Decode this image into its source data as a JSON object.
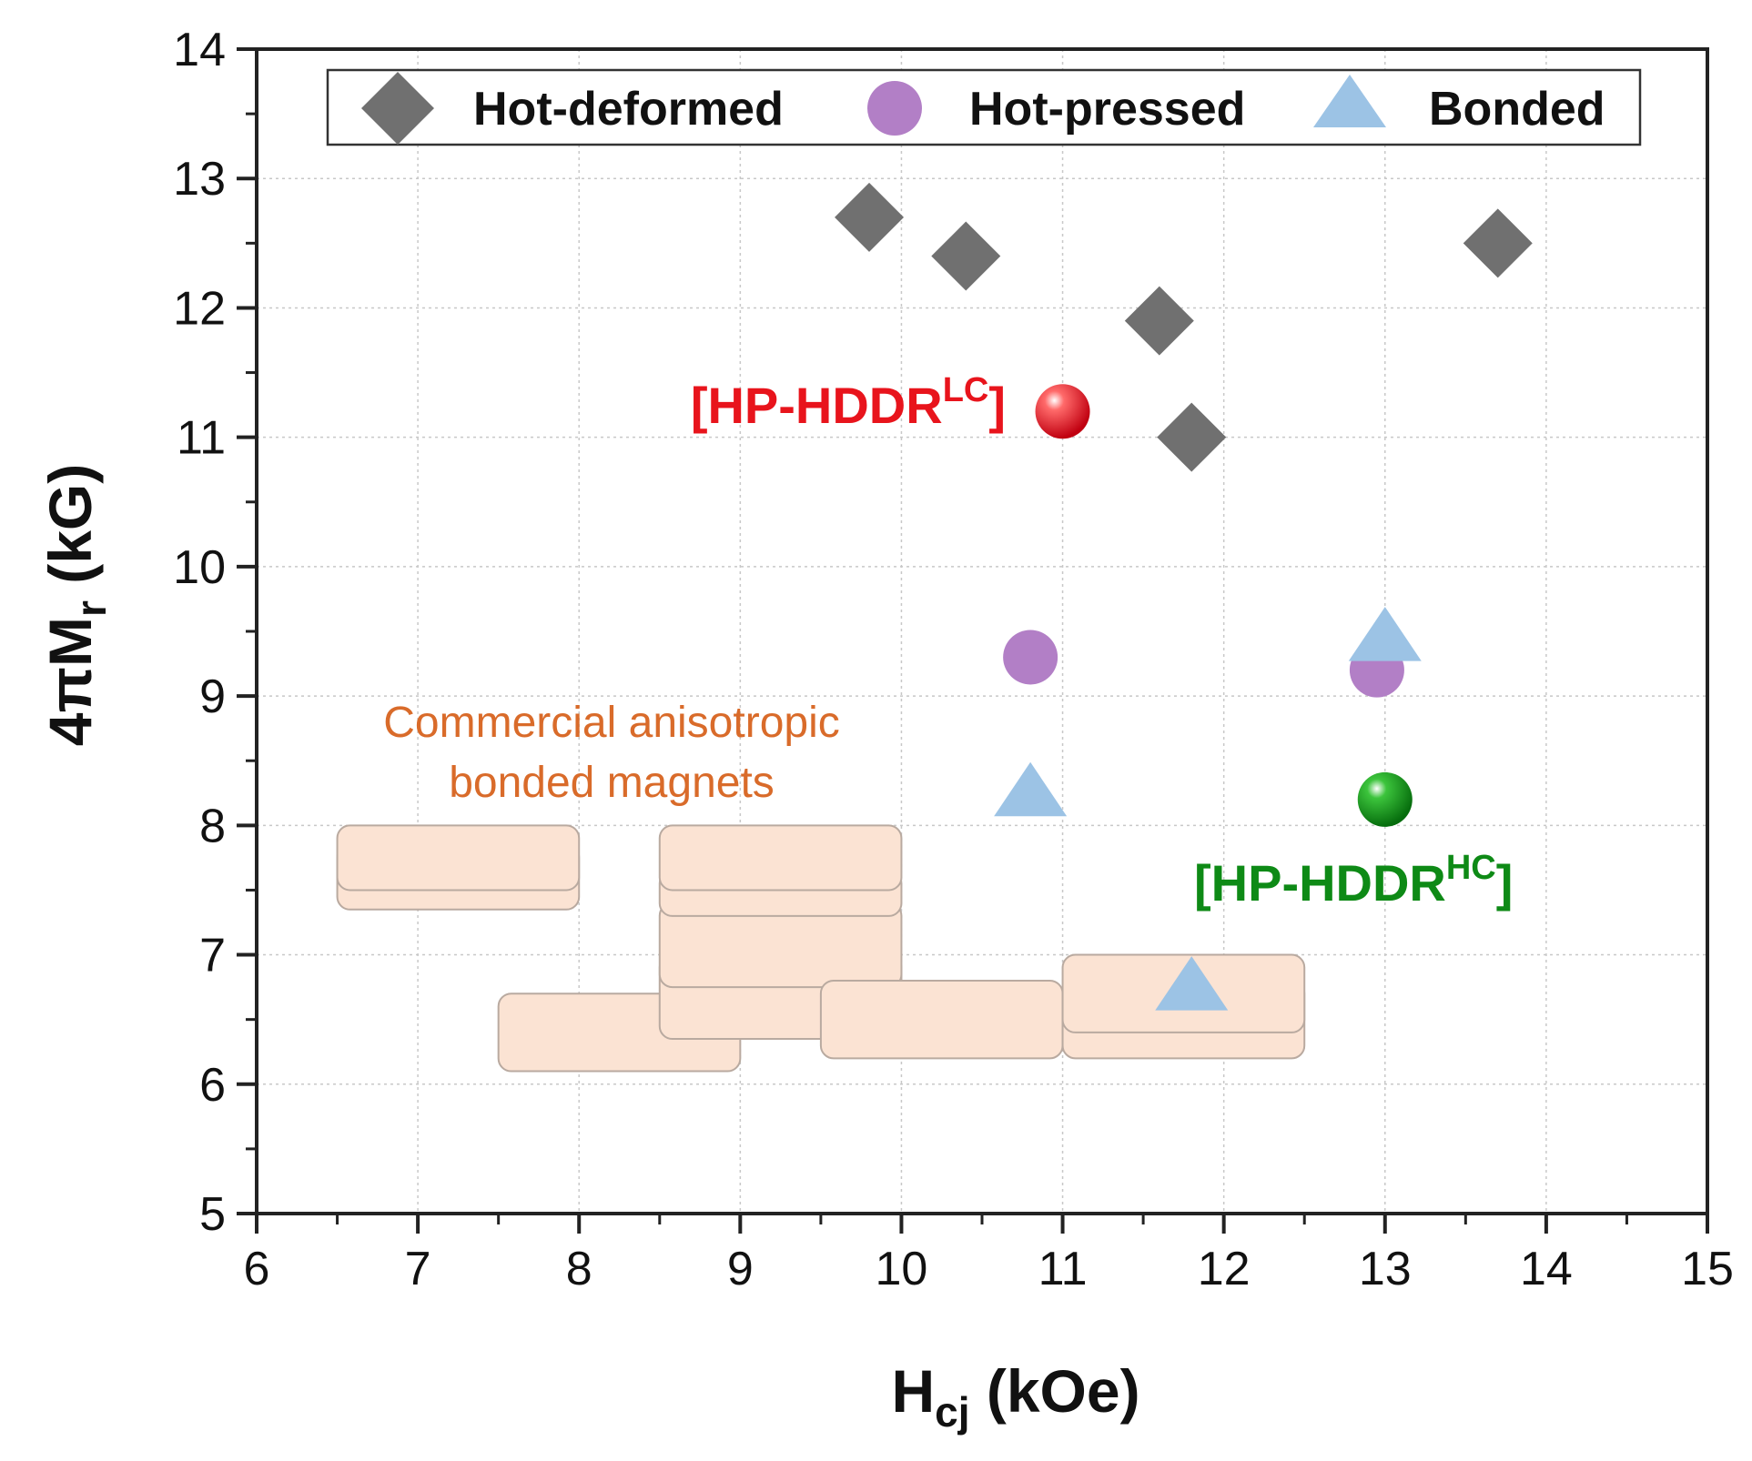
{
  "chart_data": {
    "type": "scatter",
    "title": "",
    "xlabel": {
      "main": "H",
      "sub": "cj",
      "unit": " (kOe)"
    },
    "ylabel": {
      "main": "4πM",
      "sub": "r",
      "unit": " (kG)"
    },
    "xlim": [
      6,
      15
    ],
    "ylim": [
      5,
      14
    ],
    "xticks": [
      6,
      7,
      8,
      9,
      10,
      11,
      12,
      13,
      14,
      15
    ],
    "yticks": [
      5,
      6,
      7,
      8,
      9,
      10,
      11,
      12,
      13,
      14
    ],
    "grid": true,
    "legend_position": "top",
    "series": [
      {
        "name": "Hot-deformed",
        "marker": "diamond",
        "color": "#707070",
        "points": [
          {
            "x": 9.8,
            "y": 12.7
          },
          {
            "x": 10.4,
            "y": 12.4
          },
          {
            "x": 11.6,
            "y": 11.9
          },
          {
            "x": 11.8,
            "y": 11.0
          },
          {
            "x": 13.7,
            "y": 12.5
          }
        ]
      },
      {
        "name": "Hot-pressed",
        "marker": "circle",
        "color": "#b27fc6",
        "points": [
          {
            "x": 10.8,
            "y": 9.3
          },
          {
            "x": 12.95,
            "y": 9.2
          }
        ]
      },
      {
        "name": "Bonded",
        "marker": "triangle",
        "color": "#9cc3e5",
        "points": [
          {
            "x": 10.8,
            "y": 8.25
          },
          {
            "x": 13.0,
            "y": 9.45
          },
          {
            "x": 11.8,
            "y": 6.75
          }
        ]
      }
    ],
    "highlighted_points": [
      {
        "label_main": "[HP-HDDR",
        "label_sup": "LC",
        "label_end": "]",
        "x": 11.0,
        "y": 11.2,
        "color": "#e8141c"
      },
      {
        "label_main": "[HP-HDDR",
        "label_sup": "HC",
        "label_end": "]",
        "x": 13.0,
        "y": 8.2,
        "color": "#0e8a16"
      }
    ],
    "commercial_regions": {
      "label_line1": "Commercial anisotropic",
      "label_line2": "bonded magnets",
      "label_color": "#d96b2a",
      "fill_color": "#fbe3d3",
      "boxes": [
        {
          "x0": 6.5,
          "x1": 8.0,
          "y0": 7.35,
          "y1": 7.85
        },
        {
          "x0": 6.5,
          "x1": 8.0,
          "y0": 7.5,
          "y1": 8.0
        },
        {
          "x0": 7.5,
          "x1": 9.0,
          "y0": 6.1,
          "y1": 6.7
        },
        {
          "x0": 8.5,
          "x1": 10.0,
          "y0": 6.35,
          "y1": 7.0
        },
        {
          "x0": 8.5,
          "x1": 10.0,
          "y0": 6.75,
          "y1": 7.4
        },
        {
          "x0": 8.5,
          "x1": 10.0,
          "y0": 7.3,
          "y1": 7.65
        },
        {
          "x0": 8.5,
          "x1": 10.0,
          "y0": 7.5,
          "y1": 8.0
        },
        {
          "x0": 9.5,
          "x1": 11.0,
          "y0": 6.2,
          "y1": 6.8
        },
        {
          "x0": 11.0,
          "x1": 12.5,
          "y0": 6.2,
          "y1": 6.8
        },
        {
          "x0": 11.0,
          "x1": 12.5,
          "y0": 6.4,
          "y1": 7.0
        }
      ]
    }
  }
}
